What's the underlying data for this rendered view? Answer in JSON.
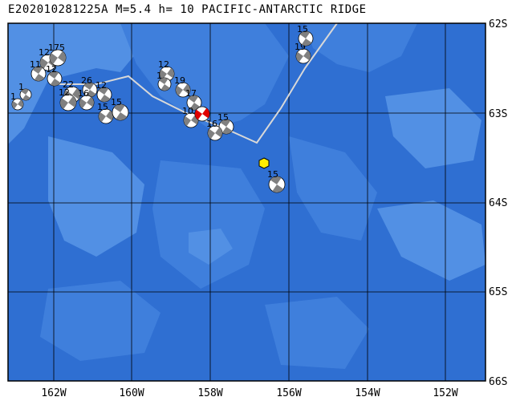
{
  "header": {
    "event_id": "E202010281225A",
    "magnitude": "M=5.4",
    "depth": "h= 10",
    "region": "PACIFIC-ANTARCTIC RIDGE"
  },
  "map": {
    "lon_labels": [
      "162W",
      "160W",
      "158W",
      "156W",
      "154W",
      "152W"
    ],
    "lat_labels": [
      "62S",
      "63S",
      "64S",
      "65S",
      "66S"
    ],
    "colors": {
      "ocean_deep": "#2f6fd2",
      "ocean_mid": "#3f7fdc",
      "ocean_shallow": "#5290e4",
      "grid": "#000000",
      "plate_boundary": "#d8d8d8",
      "epicenter": "#ffee00"
    }
  },
  "mechanisms": [
    {
      "label": "1",
      "style": "a"
    },
    {
      "label": "1",
      "style": "b"
    },
    {
      "label": "12",
      "style": "a"
    },
    {
      "label": "11",
      "style": "b"
    },
    {
      "label": "175",
      "style": "a"
    },
    {
      "label": "12",
      "style": "b"
    },
    {
      "label": "22",
      "style": "a"
    },
    {
      "label": "26",
      "style": "b"
    },
    {
      "label": "16",
      "style": "a"
    },
    {
      "label": "12",
      "style": "b"
    },
    {
      "label": "15",
      "style": "a"
    },
    {
      "label": "15",
      "style": "b"
    },
    {
      "label": "12",
      "style": "a"
    },
    {
      "label": "1",
      "style": "b"
    },
    {
      "label": "19",
      "style": "a"
    },
    {
      "label": "17",
      "style": "b"
    },
    {
      "label": "10",
      "style": "a"
    },
    {
      "label": "",
      "style": "target"
    },
    {
      "label": "15",
      "style": "b"
    },
    {
      "label": "16",
      "style": "a"
    },
    {
      "label": "15",
      "style": "b"
    },
    {
      "label": "19",
      "style": "a"
    },
    {
      "label": "15",
      "style": "b"
    },
    {
      "label": "12",
      "style": "a"
    }
  ]
}
